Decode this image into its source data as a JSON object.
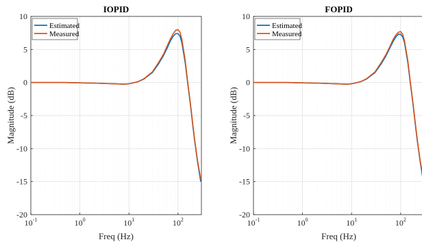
{
  "chart_data": [
    {
      "type": "line",
      "title": "IOPID",
      "xlabel": "Freq (Hz)",
      "ylabel": "Magnitude (dB)",
      "xscale": "log",
      "xlim": [
        0.1,
        300
      ],
      "ylim": [
        -20,
        10
      ],
      "x_ticks": [
        0.1,
        1,
        10,
        100
      ],
      "x_tick_labels": [
        {
          "base": "10",
          "exp": "-1"
        },
        {
          "base": "10",
          "exp": "0"
        },
        {
          "base": "10",
          "exp": "1"
        },
        {
          "base": "10",
          "exp": "2"
        }
      ],
      "y_ticks": [
        -20,
        -15,
        -10,
        -5,
        0,
        5,
        10
      ],
      "y_tick_labels": [
        "-20",
        "-15",
        "-10",
        "-5",
        "0",
        "5",
        "10"
      ],
      "grid": true,
      "minor_grid": true,
      "legend_position": "top-left",
      "series": [
        {
          "name": "Estimated",
          "color": "#0072BD",
          "x": [
            0.1,
            0.5,
            1,
            2,
            5,
            8,
            10,
            15,
            20,
            30,
            40,
            50,
            60,
            70,
            80,
            90,
            100,
            110,
            120,
            140,
            160,
            180,
            200,
            220,
            250,
            290
          ],
          "y": [
            0,
            0,
            -0.05,
            -0.1,
            -0.2,
            -0.25,
            -0.2,
            0.1,
            0.5,
            1.5,
            2.8,
            4.0,
            5.2,
            6.3,
            7.0,
            7.4,
            7.4,
            7.0,
            6.0,
            3.0,
            -0.5,
            -3.5,
            -6.5,
            -9.0,
            -12.0,
            -15.0
          ]
        },
        {
          "name": "Measured",
          "color": "#D95319",
          "x": [
            0.1,
            0.5,
            1,
            2,
            5,
            8,
            10,
            15,
            20,
            30,
            40,
            50,
            60,
            70,
            80,
            90,
            100,
            110,
            120,
            140,
            160,
            180,
            200,
            220,
            250,
            290
          ],
          "y": [
            0,
            0,
            -0.05,
            -0.1,
            -0.2,
            -0.25,
            -0.2,
            0.1,
            0.55,
            1.6,
            3.0,
            4.2,
            5.5,
            6.6,
            7.4,
            7.9,
            8.0,
            7.6,
            6.5,
            3.4,
            -0.3,
            -3.3,
            -6.3,
            -8.8,
            -11.8,
            -14.6
          ]
        }
      ]
    },
    {
      "type": "line",
      "title": "FOPID",
      "xlabel": "Freq (Hz)",
      "ylabel": "Magnitude (dB)",
      "xscale": "log",
      "xlim": [
        0.1,
        300
      ],
      "ylim": [
        -20,
        10
      ],
      "x_ticks": [
        0.1,
        1,
        10,
        100
      ],
      "x_tick_labels": [
        {
          "base": "10",
          "exp": "-1"
        },
        {
          "base": "10",
          "exp": "0"
        },
        {
          "base": "10",
          "exp": "1"
        },
        {
          "base": "10",
          "exp": "2"
        }
      ],
      "y_ticks": [
        -20,
        -15,
        -10,
        -5,
        0,
        5,
        10
      ],
      "y_tick_labels": [
        "-20",
        "-15",
        "-10",
        "-5",
        "0",
        "5",
        "10"
      ],
      "grid": true,
      "minor_grid": true,
      "legend_position": "top-left",
      "series": [
        {
          "name": "Estimated",
          "color": "#0072BD",
          "x": [
            0.1,
            0.5,
            1,
            2,
            5,
            8,
            10,
            15,
            20,
            30,
            40,
            50,
            60,
            70,
            80,
            90,
            100,
            110,
            120,
            140,
            160,
            180,
            200,
            220,
            250,
            290
          ],
          "y": [
            0,
            0,
            -0.05,
            -0.1,
            -0.2,
            -0.25,
            -0.2,
            0.1,
            0.5,
            1.5,
            2.8,
            4.0,
            5.2,
            6.2,
            6.9,
            7.3,
            7.3,
            6.9,
            6.0,
            3.0,
            -0.5,
            -3.5,
            -6.5,
            -9.0,
            -12.0,
            -15.0
          ]
        },
        {
          "name": "Measured",
          "color": "#D95319",
          "x": [
            0.1,
            0.5,
            1,
            2,
            5,
            8,
            10,
            15,
            20,
            30,
            40,
            50,
            60,
            70,
            80,
            90,
            100,
            110,
            120,
            140,
            160,
            180,
            200,
            220,
            250,
            290
          ],
          "y": [
            0,
            0,
            -0.05,
            -0.1,
            -0.2,
            -0.25,
            -0.2,
            0.1,
            0.55,
            1.6,
            3.0,
            4.2,
            5.4,
            6.5,
            7.2,
            7.6,
            7.7,
            7.3,
            6.3,
            3.3,
            -0.3,
            -3.3,
            -6.3,
            -8.8,
            -11.8,
            -14.6
          ]
        }
      ]
    }
  ]
}
